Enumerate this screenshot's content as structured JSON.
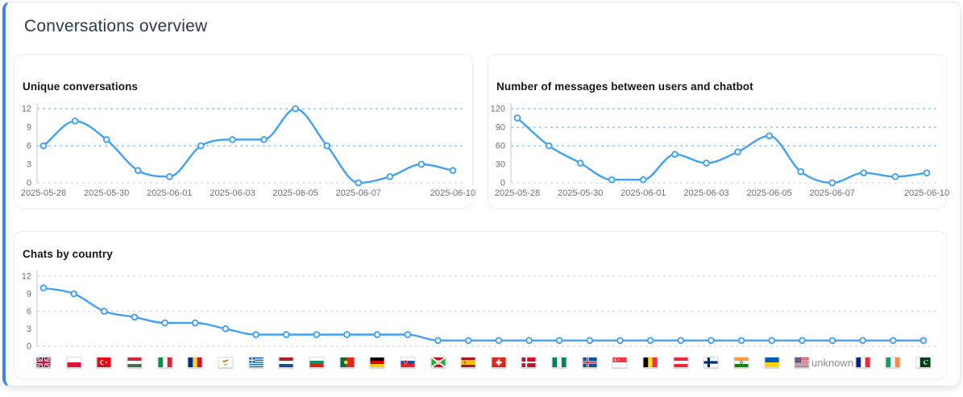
{
  "panel": {
    "title": "Conversations overview"
  },
  "colors": {
    "accent": "#3b82f6",
    "line": "#41a1f5",
    "marker_fill": "#ffffff",
    "grid_blue": "#7cbcf6",
    "grid_gray": "#d8d8d8",
    "axis": "#ccd1d6",
    "tick_label": "#6f7276",
    "unknown_text": "#8d9196"
  },
  "chart_data": [
    {
      "id": "unique-conversations",
      "type": "line",
      "title": "Unique conversations",
      "x": [
        "2025-05-28",
        "2025-05-29",
        "2025-05-30",
        "2025-05-31",
        "2025-06-01",
        "2025-06-02",
        "2025-06-03",
        "2025-06-04",
        "2025-06-05",
        "2025-06-06",
        "2025-06-07",
        "2025-06-08",
        "2025-06-09",
        "2025-06-10"
      ],
      "values": [
        6,
        10,
        7,
        2,
        1,
        6,
        7,
        7,
        12,
        6,
        0,
        1,
        3,
        2
      ],
      "xtick_labels": [
        "2025-05-28",
        "2025-05-30",
        "2025-06-01",
        "2025-06-03",
        "2025-06-05",
        "2025-06-07",
        "2025-06-10"
      ],
      "xtick_indices": [
        0,
        2,
        4,
        6,
        8,
        10,
        13
      ],
      "yticks": [
        0,
        3,
        6,
        9,
        12
      ],
      "ylim": [
        0,
        12
      ],
      "gridlines_dashed_blue": [
        12,
        6
      ],
      "gridlines_dashed_gray": [
        0
      ],
      "legend": "none",
      "smooth": true
    },
    {
      "id": "messages",
      "type": "line",
      "title": "Number of messages between users and chatbot",
      "x": [
        "2025-05-28",
        "2025-05-29",
        "2025-05-30",
        "2025-05-31",
        "2025-06-01",
        "2025-06-02",
        "2025-06-03",
        "2025-06-04",
        "2025-06-05",
        "2025-06-06",
        "2025-06-07",
        "2025-06-08",
        "2025-06-09",
        "2025-06-10"
      ],
      "values": [
        105,
        60,
        32,
        5,
        5,
        46,
        32,
        50,
        76,
        18,
        0,
        16,
        10,
        16
      ],
      "xtick_labels": [
        "2025-05-28",
        "2025-05-30",
        "2025-06-01",
        "2025-06-03",
        "2025-06-05",
        "2025-06-07",
        "2025-06-10"
      ],
      "xtick_indices": [
        0,
        2,
        4,
        6,
        8,
        10,
        13
      ],
      "yticks": [
        0,
        30,
        60,
        90,
        120
      ],
      "ylim": [
        0,
        120
      ],
      "gridlines_dashed_blue": [
        120,
        90,
        60
      ],
      "gridlines_dashed_gray": [
        0
      ],
      "legend": "none",
      "smooth": true
    },
    {
      "id": "chats-by-country",
      "type": "line",
      "title": "Chats by country",
      "categories": [
        {
          "code": "gb",
          "name": "United Kingdom"
        },
        {
          "code": "pl",
          "name": "Poland"
        },
        {
          "code": "tr",
          "name": "Turkey"
        },
        {
          "code": "hu",
          "name": "Hungary"
        },
        {
          "code": "it",
          "name": "Italy"
        },
        {
          "code": "ro",
          "name": "Romania"
        },
        {
          "code": "cy",
          "name": "Cyprus"
        },
        {
          "code": "gr",
          "name": "Greece"
        },
        {
          "code": "nl",
          "name": "Netherlands"
        },
        {
          "code": "bg",
          "name": "Bulgaria"
        },
        {
          "code": "pt",
          "name": "Portugal"
        },
        {
          "code": "de",
          "name": "Germany"
        },
        {
          "code": "sk",
          "name": "Slovakia"
        },
        {
          "code": "bi",
          "name": "Burundi"
        },
        {
          "code": "es",
          "name": "Spain"
        },
        {
          "code": "ch",
          "name": "Switzerland"
        },
        {
          "code": "dk",
          "name": "Denmark"
        },
        {
          "code": "ng",
          "name": "Nigeria"
        },
        {
          "code": "is",
          "name": "Iceland"
        },
        {
          "code": "sg",
          "name": "Singapore"
        },
        {
          "code": "be",
          "name": "Belgium"
        },
        {
          "code": "at",
          "name": "Austria"
        },
        {
          "code": "fi",
          "name": "Finland"
        },
        {
          "code": "in",
          "name": "India"
        },
        {
          "code": "ua",
          "name": "Ukraine"
        },
        {
          "code": "us",
          "name": "United States"
        },
        {
          "code": "unknown",
          "name": "unknown"
        },
        {
          "code": "fr",
          "name": "France"
        },
        {
          "code": "ie",
          "name": "Ireland"
        },
        {
          "code": "pk",
          "name": "Pakistan"
        }
      ],
      "values": [
        10,
        9,
        6,
        5,
        4,
        4,
        3,
        2,
        2,
        2,
        2,
        2,
        2,
        1,
        1,
        1,
        1,
        1,
        1,
        1,
        1,
        1,
        1,
        1,
        1,
        1,
        1,
        1,
        1,
        1
      ],
      "yticks": [
        0,
        3,
        6,
        9,
        12
      ],
      "ylim": [
        0,
        12
      ],
      "gridlines_dashed_blue": [],
      "gridlines_dashed_gray": [
        12,
        6,
        0
      ],
      "legend": "none",
      "smooth": true
    }
  ]
}
